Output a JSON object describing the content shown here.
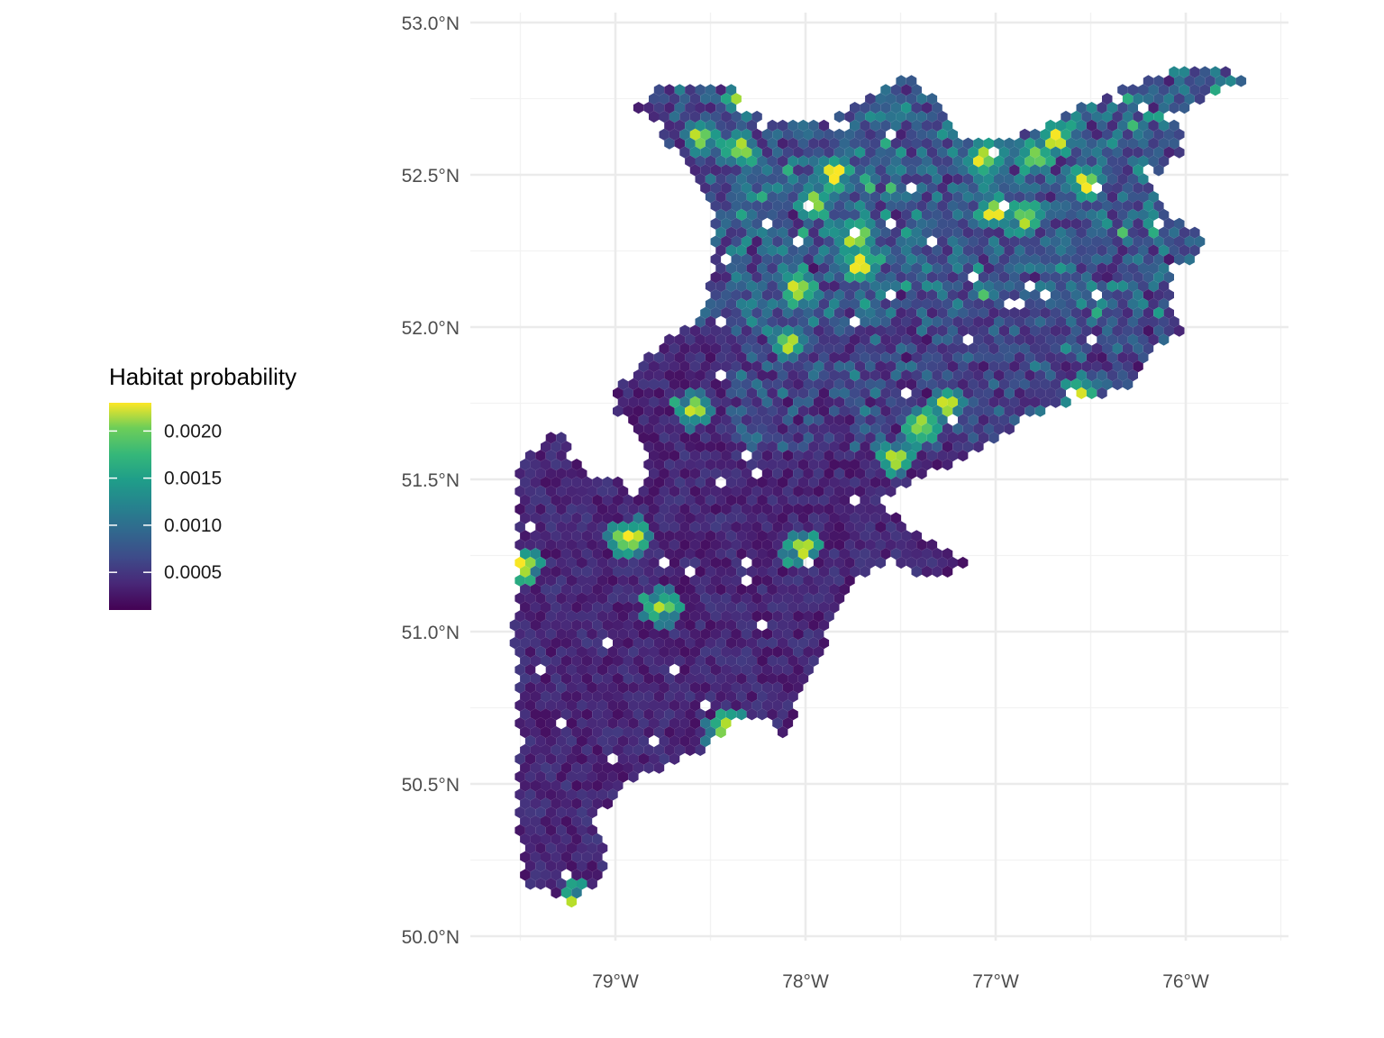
{
  "chart_data": {
    "type": "heatmap",
    "geometry": "hexbin",
    "title": "",
    "xlabel": "",
    "ylabel": "",
    "xlim": [
      -79.77,
      -75.5
    ],
    "ylim": [
      49.95,
      53.05
    ],
    "x_ticks": [
      {
        "value": -79,
        "label": "79°W"
      },
      {
        "value": -78,
        "label": "78°W"
      },
      {
        "value": -77,
        "label": "77°W"
      },
      {
        "value": -76,
        "label": "76°W"
      }
    ],
    "y_ticks": [
      {
        "value": 50.0,
        "label": "50.0°N"
      },
      {
        "value": 50.5,
        "label": "50.5°N"
      },
      {
        "value": 51.0,
        "label": "51.0°N"
      },
      {
        "value": 51.5,
        "label": "51.5°N"
      },
      {
        "value": 52.0,
        "label": "52.0°N"
      },
      {
        "value": 52.5,
        "label": "52.5°N"
      },
      {
        "value": 53.0,
        "label": "53.0°N"
      }
    ],
    "grid": true,
    "colorbar": {
      "title": "Habitat probability",
      "min": 0.0001,
      "max": 0.0023,
      "palette": "viridis",
      "ticks": [
        {
          "value": 0.0005,
          "label": "0.0005"
        },
        {
          "value": 0.001,
          "label": "0.0010"
        },
        {
          "value": 0.0015,
          "label": "0.0015"
        },
        {
          "value": 0.002,
          "label": "0.0020"
        }
      ],
      "position": "left"
    },
    "region_outline_lonlat": [
      [
        -78.8,
        52.78
      ],
      [
        -78.5,
        52.8
      ],
      [
        -78.38,
        52.79
      ],
      [
        -78.35,
        52.72
      ],
      [
        -78.15,
        52.66
      ],
      [
        -77.9,
        52.68
      ],
      [
        -77.6,
        52.77
      ],
      [
        -77.48,
        52.84
      ],
      [
        -77.3,
        52.73
      ],
      [
        -77.2,
        52.62
      ],
      [
        -77.02,
        52.62
      ],
      [
        -76.8,
        52.64
      ],
      [
        -76.62,
        52.7
      ],
      [
        -76.38,
        52.77
      ],
      [
        -76.18,
        52.82
      ],
      [
        -75.97,
        52.87
      ],
      [
        -75.78,
        52.84
      ],
      [
        -75.68,
        52.8
      ],
      [
        -75.82,
        52.78
      ],
      [
        -76.05,
        52.7
      ],
      [
        -76.02,
        52.58
      ],
      [
        -76.2,
        52.48
      ],
      [
        -76.1,
        52.38
      ],
      [
        -75.9,
        52.3
      ],
      [
        -76.0,
        52.2
      ],
      [
        -76.1,
        52.14
      ],
      [
        -76.02,
        51.99
      ],
      [
        -76.2,
        51.92
      ],
      [
        -76.25,
        51.82
      ],
      [
        -76.42,
        51.78
      ],
      [
        -76.6,
        51.75
      ],
      [
        -76.82,
        51.71
      ],
      [
        -76.97,
        51.63
      ],
      [
        -77.22,
        51.55
      ],
      [
        -77.42,
        51.5
      ],
      [
        -77.6,
        51.43
      ],
      [
        -77.45,
        51.33
      ],
      [
        -77.25,
        51.27
      ],
      [
        -77.12,
        51.21
      ],
      [
        -77.4,
        51.17
      ],
      [
        -77.55,
        51.24
      ],
      [
        -77.75,
        51.17
      ],
      [
        -77.85,
        51.05
      ],
      [
        -77.92,
        50.92
      ],
      [
        -77.95,
        50.86
      ],
      [
        -78.05,
        50.81
      ],
      [
        -78.04,
        50.72
      ],
      [
        -78.1,
        50.66
      ],
      [
        -78.25,
        50.72
      ],
      [
        -78.38,
        50.72
      ],
      [
        -78.5,
        50.62
      ],
      [
        -78.7,
        50.57
      ],
      [
        -78.9,
        50.52
      ],
      [
        -79.0,
        50.45
      ],
      [
        -79.12,
        50.38
      ],
      [
        -79.05,
        50.28
      ],
      [
        -79.05,
        50.19
      ],
      [
        -79.18,
        50.14
      ],
      [
        -79.2,
        50.09
      ],
      [
        -79.35,
        50.14
      ],
      [
        -79.48,
        50.18
      ],
      [
        -79.5,
        50.3
      ],
      [
        -79.52,
        50.6
      ],
      [
        -79.53,
        51.0
      ],
      [
        -79.52,
        51.3
      ],
      [
        -79.52,
        51.56
      ],
      [
        -79.38,
        51.62
      ],
      [
        -79.3,
        51.66
      ],
      [
        -79.22,
        51.6
      ],
      [
        -79.12,
        51.5
      ],
      [
        -78.98,
        51.49
      ],
      [
        -78.9,
        51.4
      ],
      [
        -78.85,
        51.52
      ],
      [
        -78.82,
        51.58
      ],
      [
        -78.9,
        51.68
      ],
      [
        -79.0,
        51.72
      ],
      [
        -79.02,
        51.8
      ],
      [
        -78.85,
        51.88
      ],
      [
        -78.75,
        51.97
      ],
      [
        -78.6,
        52.0
      ],
      [
        -78.52,
        52.1
      ],
      [
        -78.48,
        52.22
      ],
      [
        -78.5,
        52.38
      ],
      [
        -78.58,
        52.5
      ],
      [
        -78.62,
        52.55
      ],
      [
        -78.78,
        52.62
      ],
      [
        -78.88,
        52.72
      ]
    ],
    "hotspots_lonlat": [
      [
        -78.96,
        51.3
      ],
      [
        -78.9,
        51.31
      ],
      [
        -78.6,
        51.73
      ],
      [
        -78.38,
        50.69
      ],
      [
        -78.45,
        50.66
      ],
      [
        -77.76,
        52.29
      ],
      [
        -77.72,
        52.3
      ],
      [
        -77.26,
        51.74
      ],
      [
        -76.68,
        52.62
      ],
      [
        -76.55,
        51.78
      ],
      [
        -76.52,
        52.47
      ],
      [
        -78.35,
        52.58
      ],
      [
        -78.32,
        52.75
      ],
      [
        -78.25,
        52.82
      ],
      [
        -78.76,
        51.08
      ],
      [
        -79.2,
        50.11
      ],
      [
        -79.47,
        51.22
      ],
      [
        -78.02,
        51.27
      ],
      [
        -77.52,
        51.57
      ],
      [
        -77.4,
        51.67
      ],
      [
        -78.02,
        52.13
      ],
      [
        -77.05,
        52.55
      ],
      [
        -77.95,
        52.42
      ],
      [
        -78.55,
        52.62
      ],
      [
        -77.85,
        52.5
      ],
      [
        -76.85,
        52.35
      ],
      [
        -77.0,
        52.38
      ],
      [
        -78.1,
        51.95
      ],
      [
        -77.7,
        52.2
      ],
      [
        -76.8,
        52.55
      ]
    ],
    "dominant_range": [
      0.0001,
      0.0007
    ]
  }
}
